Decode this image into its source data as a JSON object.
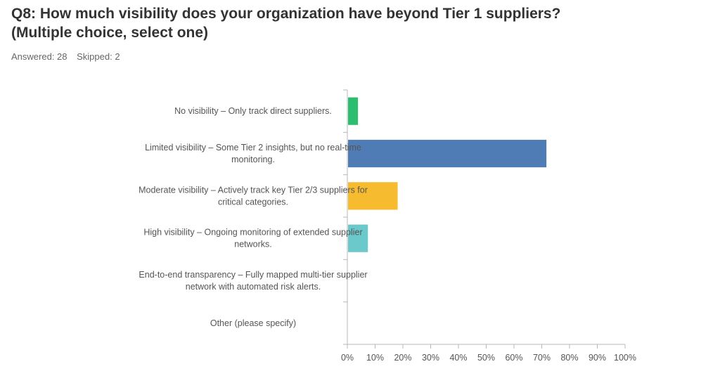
{
  "question": {
    "title_line1": "Q8: How much visibility does your organization have beyond Tier 1 suppliers?",
    "title_line2": "(Multiple choice, select one)",
    "answered": "Answered: 28",
    "skipped": "Skipped: 2"
  },
  "chart_data": {
    "type": "bar",
    "orientation": "horizontal",
    "categories": [
      [
        "No visibility – Only track direct suppliers."
      ],
      [
        "Limited visibility – Some Tier 2 insights, but no real-time",
        "monitoring."
      ],
      [
        "Moderate visibility – Actively track key Tier 2/3 suppliers for",
        "critical categories."
      ],
      [
        "High visibility – Ongoing monitoring of extended supplier",
        "networks."
      ],
      [
        "End-to-end transparency – Fully mapped multi-tier supplier",
        "network with automated risk alerts."
      ],
      [
        "Other (please specify)"
      ]
    ],
    "values": [
      3.57,
      71.43,
      17.86,
      7.14,
      0,
      0
    ],
    "colors": [
      "#2dbd6e",
      "#507cb6",
      "#f6bb2f",
      "#6cc9cb",
      "#9e9e9e",
      "#9e9e9e"
    ],
    "xlim": [
      0,
      100
    ],
    "xticks": [
      "0%",
      "10%",
      "20%",
      "30%",
      "40%",
      "50%",
      "60%",
      "70%",
      "80%",
      "90%",
      "100%"
    ],
    "grid": false,
    "legend": "none"
  }
}
